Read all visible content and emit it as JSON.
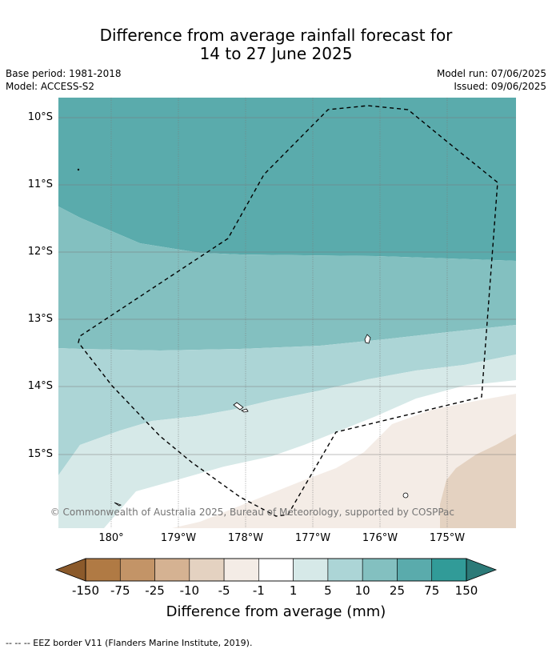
{
  "title_line1": "Difference from average rainfall forecast for",
  "title_line2": "14 to 27 June 2025",
  "meta": {
    "base_period": "Base period: 1981-2018",
    "model": "Model: ACCESS-S2",
    "model_run": "Model run: 07/06/2025",
    "issued": "Issued: 09/06/2025"
  },
  "lat_labels": [
    "10°S",
    "11°S",
    "12°S",
    "13°S",
    "14°S",
    "15°S"
  ],
  "lon_labels": [
    "180°",
    "179°W",
    "178°W",
    "177°W",
    "176°W",
    "175°W"
  ],
  "copyright": "© Commonwealth of Australia 2025, Bureau of Meteorology, supported by COSPPac",
  "colorbar": {
    "ticks": [
      "-150",
      "-75",
      "-25",
      "-10",
      "-5",
      "-1",
      "1",
      "5",
      "10",
      "25",
      "75",
      "150"
    ],
    "colors": [
      "#8b5a2b",
      "#b07a44",
      "#c39467",
      "#d5b292",
      "#e4d2c1",
      "#f4ece6",
      "#ffffff",
      "#d6e9e8",
      "#acd5d6",
      "#83c0c0",
      "#5aabac",
      "#319b98",
      "#2c7a78"
    ],
    "title": "Difference from average (mm)"
  },
  "footer": "--  --  -- EEZ border V11 (Flanders Marine Institute, 2019)."
}
